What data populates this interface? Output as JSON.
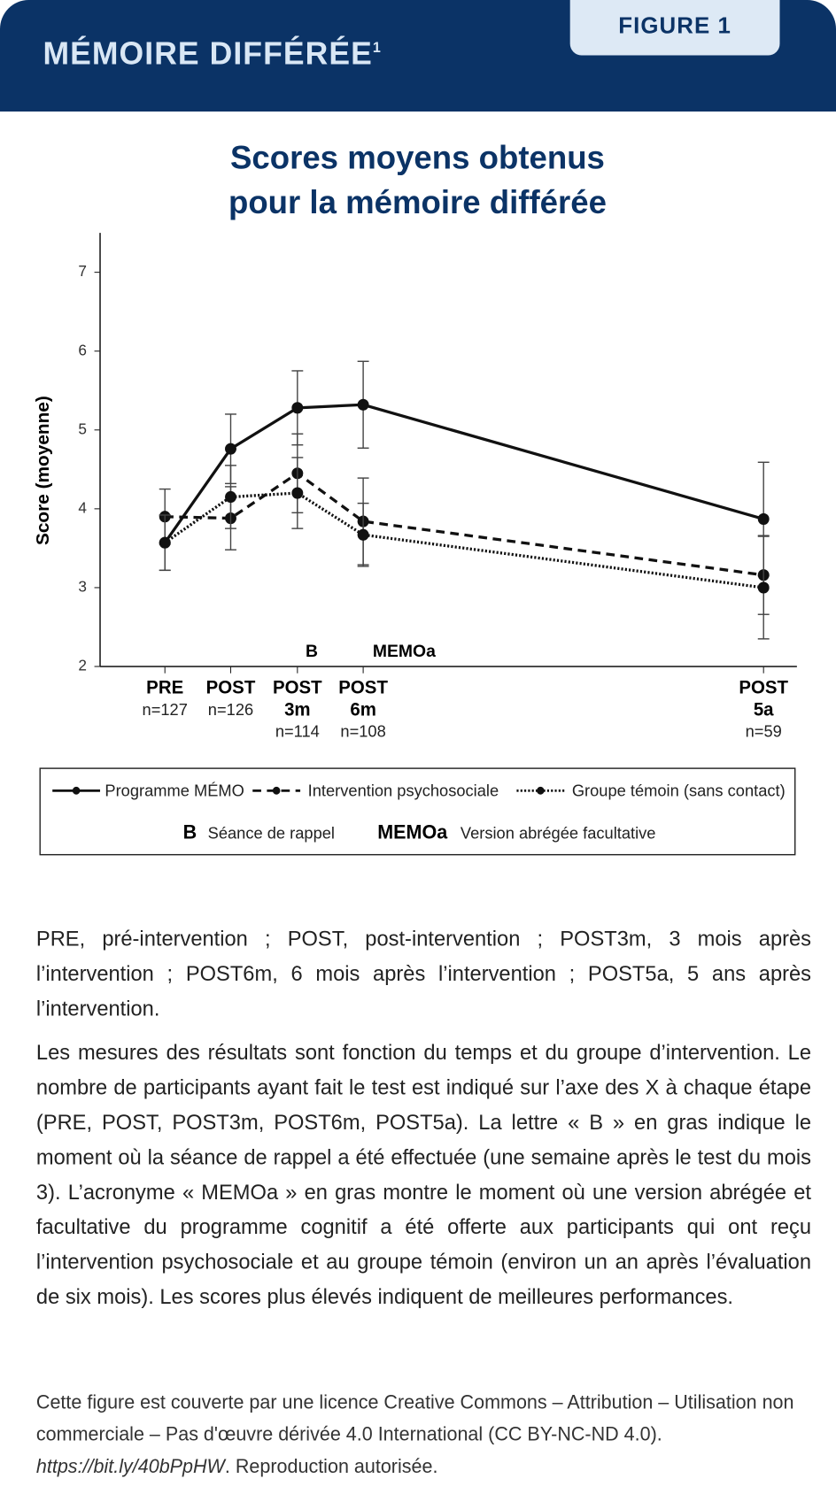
{
  "header": {
    "title": "MÉMOIRE DIFFÉRÉE",
    "footnote_mark": "1",
    "badge": "FIGURE 1"
  },
  "chart_data": {
    "type": "line",
    "title": [
      "Scores moyens obtenus",
      "pour la mémoire différée"
    ],
    "y_label": "Score (moyenne)",
    "categories": [
      [
        "PRE"
      ],
      [
        "POST"
      ],
      [
        "POST",
        "3m"
      ],
      [
        "POST",
        "6m"
      ],
      [
        "POST",
        "5a"
      ]
    ],
    "sample_labels": [
      "n=127",
      "n=126",
      "n=114",
      "n=108",
      "n=59"
    ],
    "ylim": [
      2,
      7.5
    ],
    "yticks": [
      2,
      3,
      4,
      5,
      6,
      7
    ],
    "series": [
      {
        "name": "Programme MÉMO",
        "color": "#111111",
        "dash": "solid",
        "values": [
          3.57,
          4.76,
          5.28,
          5.32,
          3.87
        ],
        "errors": [
          0.35,
          0.44,
          0.47,
          0.55,
          0.72
        ]
      },
      {
        "name": "Intervention psychosociale",
        "color": "#111111",
        "dash": "dashed",
        "values": [
          3.9,
          3.88,
          4.45,
          3.84,
          3.16
        ],
        "errors": [
          0.35,
          0.4,
          0.5,
          0.55,
          0.5
        ]
      },
      {
        "name": "Groupe témoin (sans contact)",
        "color": "#111111",
        "dash": "dotted",
        "values": [
          3.57,
          4.15,
          4.2,
          3.67,
          3.0
        ],
        "errors": [
          0.35,
          0.4,
          0.45,
          0.4,
          0.65
        ]
      }
    ],
    "annotations": [
      "B",
      "MEMOa"
    ],
    "legend_notes": [
      {
        "symbol": "B",
        "text": "Séance de rappel"
      },
      {
        "symbol": "MEMOa",
        "text": "Version abrégée facultative"
      }
    ]
  },
  "notes": [
    "PRE, pré-intervention ; POST, post-intervention ; POST3m, 3 mois après l’intervention ; POST6m, 6 mois après l’intervention ; POST5a, 5 ans après l’intervention.",
    "Les mesures des résultats sont fonction du temps et du groupe d’intervention. Le nombre de participants ayant fait le test est indiqué sur l’axe des X à chaque étape (PRE, POST, POST3m, POST6m, POST5a). La lettre « B » en gras indique le moment où la séance de rappel a été effectuée (une semaine après le test du mois 3). L’acronyme « MEMOa » en gras montre le moment où une version abrégée et facultative du programme cognitif a été offerte aux participants qui ont reçu l’intervention psychosociale et au groupe témoin (environ un an après l’évaluation de six mois). Les scores plus élevés indiquent de meilleures performances."
  ],
  "license": {
    "text": "Cette figure est couverte par une licence Creative Commons – Attribution – Utilisation non commerciale – Pas d'œuvre dérivée 4.0 International (CC BY-NC-ND 4.0). ",
    "link": "https://bit.ly/40bPpHW",
    "end": ". Reproduction autorisée."
  }
}
